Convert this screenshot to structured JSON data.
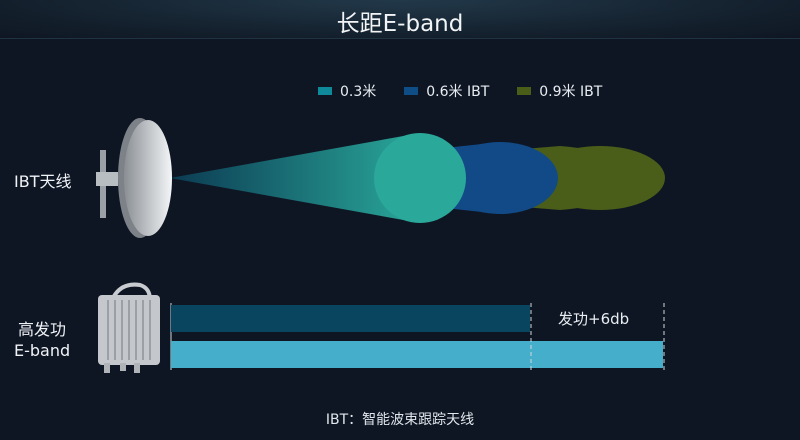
{
  "title": "长距E-band",
  "legend": [
    {
      "label": "0.3米",
      "color": "#0f8a9a"
    },
    {
      "label": "0.6米 IBT",
      "color": "#0f4d86"
    },
    {
      "label": "0.9米 IBT",
      "color": "#4a5e1a"
    }
  ],
  "antenna_label": "IBT天线",
  "radio_label_line1": "高发功",
  "radio_label_line2": "E-band",
  "gain_label": "发功+6db",
  "bar_colors": {
    "normal": "#0a4560",
    "high": "#45aecb"
  },
  "footnote": "IBT：智能波束跟踪天线"
}
